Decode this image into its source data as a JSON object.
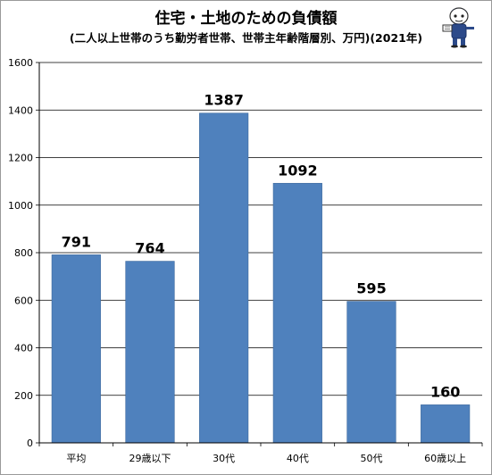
{
  "title": "住宅・土地のための負債額",
  "subtitle": "(二人以上世帯のうち勤労者世帯、世帯主年齢階層別、万円)(2021年)",
  "colors": {
    "bar": "#4f81bd",
    "bar_edge": "#3a679c",
    "grid": "#000000"
  },
  "mascot_icon": "mascot-character-icon",
  "chart_data": {
    "type": "bar",
    "title": "住宅・土地のための負債額",
    "subtitle": "(二人以上世帯のうち勤労者世帯、世帯主年齢階層別、万円)(2021年)",
    "xlabel": "",
    "ylabel": "",
    "categories": [
      "平均",
      "29歳以下",
      "30代",
      "40代",
      "50代",
      "60歳以上"
    ],
    "values": [
      791,
      764,
      1387,
      1092,
      595,
      160
    ],
    "data_labels": [
      "791",
      "764",
      "1387",
      "1092",
      "595",
      "160"
    ],
    "ylim": [
      0,
      1600
    ],
    "yticks": [
      0,
      200,
      400,
      600,
      800,
      1000,
      1200,
      1400,
      1600
    ],
    "ytick_labels": [
      "0",
      "200",
      "400",
      "600",
      "800",
      "1000",
      "1200",
      "1400",
      "1600"
    ],
    "grid": true,
    "legend": "none"
  }
}
